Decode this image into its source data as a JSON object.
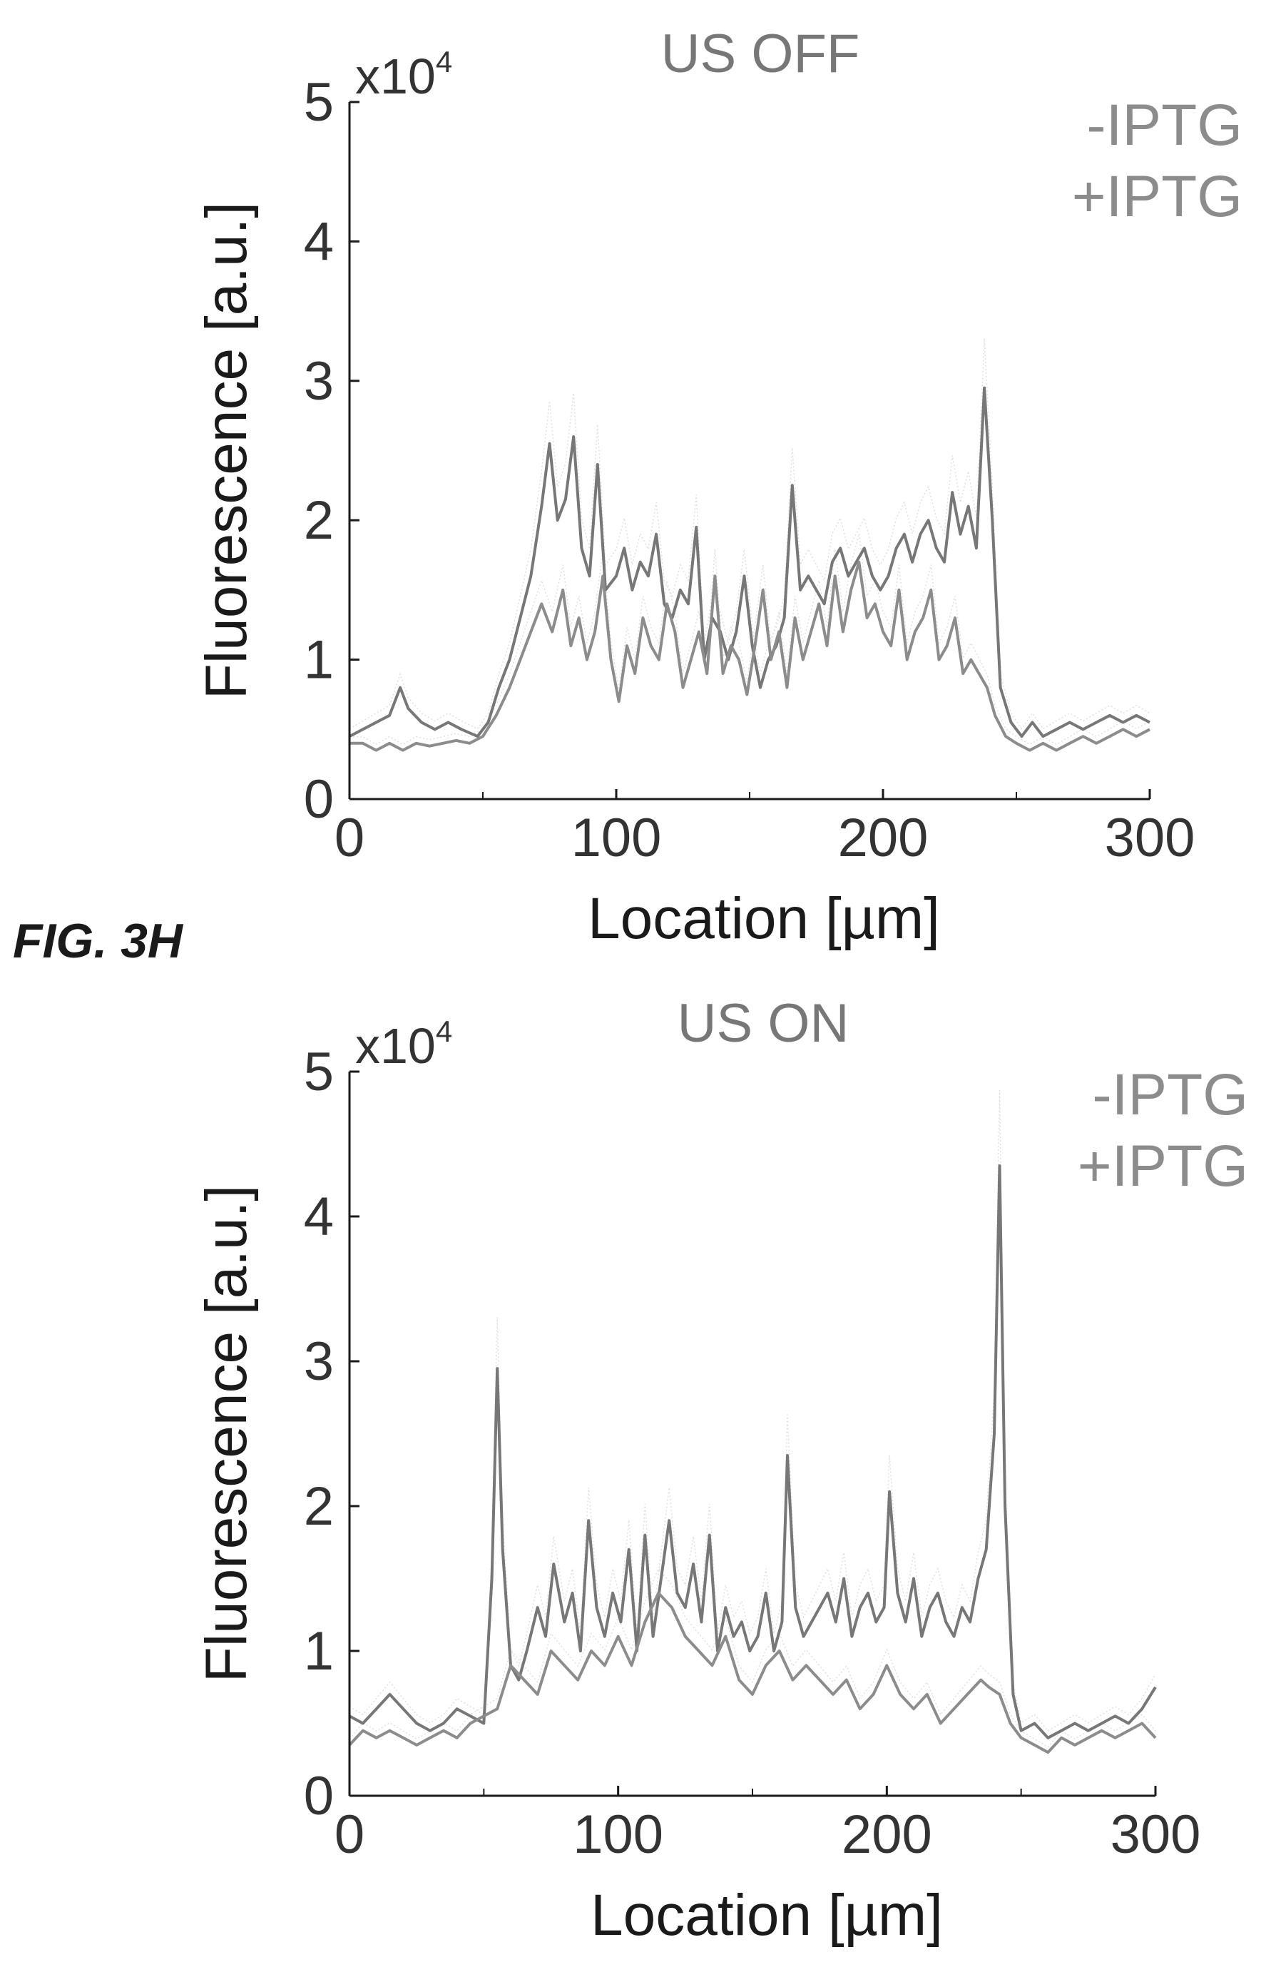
{
  "figure_label": "FIG. 3H",
  "colors": {
    "axis": "#1a1a1a",
    "tick_text": "#333333",
    "minus_iptg": "#777777",
    "plus_iptg": "#8c8c8c",
    "title": "#777777",
    "legend": "#8c8c8c",
    "band": "#c8c8c8"
  },
  "chart_data": [
    {
      "type": "line",
      "title": "US OFF",
      "xlabel": "Location [µm]",
      "ylabel": "Fluorescence [a.u.]",
      "exponent_label": "x10",
      "exponent_sup": "4",
      "xlim": [
        0,
        300
      ],
      "ylim": [
        0,
        5
      ],
      "xticks": [
        0,
        100,
        200,
        300
      ],
      "xtick_labels": [
        "0",
        "100",
        "200",
        "300"
      ],
      "yticks": [
        0,
        1,
        2,
        3,
        4,
        5
      ],
      "ytick_labels": [
        "0",
        "1",
        "2",
        "3",
        "4",
        "5"
      ],
      "grid": false,
      "legend_position": "top-right",
      "series": [
        {
          "name": "-IPTG",
          "x": [
            0,
            5,
            10,
            15,
            19,
            22,
            27,
            32,
            37,
            42,
            48,
            52,
            56,
            60,
            64,
            68,
            72,
            75,
            78,
            81,
            84,
            87,
            90,
            93,
            96,
            100,
            103,
            106,
            109,
            112,
            115,
            118,
            121,
            124,
            127,
            130,
            133,
            136,
            139,
            142,
            145,
            148,
            151,
            154,
            157,
            160,
            163,
            166,
            169,
            172,
            175,
            178,
            181,
            184,
            187,
            190,
            193,
            196,
            199,
            202,
            205,
            208,
            211,
            214,
            217,
            220,
            223,
            226,
            229,
            232,
            235,
            238,
            241,
            244,
            248,
            252,
            256,
            260,
            265,
            270,
            275,
            280,
            285,
            290,
            295,
            300
          ],
          "y": [
            0.45,
            0.5,
            0.55,
            0.6,
            0.8,
            0.65,
            0.55,
            0.5,
            0.55,
            0.5,
            0.45,
            0.55,
            0.8,
            1.0,
            1.3,
            1.6,
            2.1,
            2.55,
            2.0,
            2.15,
            2.6,
            1.8,
            1.6,
            2.4,
            1.5,
            1.6,
            1.8,
            1.5,
            1.7,
            1.6,
            1.9,
            1.4,
            1.3,
            1.5,
            1.4,
            1.95,
            1.0,
            1.3,
            1.2,
            1.0,
            1.2,
            1.6,
            1.1,
            0.8,
            1.0,
            1.1,
            1.3,
            2.25,
            1.5,
            1.6,
            1.5,
            1.4,
            1.7,
            1.8,
            1.6,
            1.7,
            1.8,
            1.6,
            1.5,
            1.6,
            1.8,
            1.9,
            1.7,
            1.9,
            2.0,
            1.8,
            1.7,
            2.2,
            1.9,
            2.1,
            1.8,
            2.95,
            2.0,
            0.8,
            0.55,
            0.45,
            0.55,
            0.45,
            0.5,
            0.55,
            0.5,
            0.55,
            0.6,
            0.55,
            0.6,
            0.55
          ]
        },
        {
          "name": "+IPTG",
          "x": [
            0,
            5,
            10,
            15,
            20,
            25,
            30,
            35,
            40,
            45,
            50,
            55,
            60,
            64,
            68,
            72,
            76,
            80,
            83,
            86,
            89,
            92,
            95,
            98,
            101,
            104,
            107,
            110,
            113,
            116,
            119,
            122,
            125,
            128,
            131,
            134,
            137,
            140,
            143,
            146,
            149,
            152,
            155,
            158,
            161,
            164,
            167,
            170,
            173,
            176,
            179,
            182,
            185,
            188,
            191,
            194,
            197,
            200,
            203,
            206,
            209,
            212,
            215,
            218,
            221,
            224,
            227,
            230,
            233,
            236,
            239,
            242,
            246,
            250,
            255,
            260,
            265,
            270,
            275,
            280,
            285,
            290,
            295,
            300
          ],
          "y": [
            0.4,
            0.4,
            0.35,
            0.4,
            0.35,
            0.4,
            0.38,
            0.4,
            0.42,
            0.4,
            0.45,
            0.6,
            0.8,
            1.0,
            1.2,
            1.4,
            1.2,
            1.5,
            1.1,
            1.3,
            1.0,
            1.2,
            1.6,
            1.0,
            0.7,
            1.1,
            0.9,
            1.3,
            1.1,
            1.0,
            1.4,
            1.2,
            0.8,
            1.0,
            1.2,
            0.9,
            1.6,
            0.9,
            1.1,
            1.0,
            0.75,
            1.1,
            1.5,
            1.0,
            1.2,
            0.8,
            1.3,
            1.0,
            1.2,
            1.4,
            1.1,
            1.6,
            1.2,
            1.5,
            1.7,
            1.3,
            1.4,
            1.2,
            1.1,
            1.5,
            1.0,
            1.2,
            1.3,
            1.5,
            1.0,
            1.1,
            1.3,
            0.9,
            1.0,
            0.9,
            0.8,
            0.6,
            0.45,
            0.4,
            0.35,
            0.4,
            0.35,
            0.4,
            0.45,
            0.4,
            0.45,
            0.5,
            0.45,
            0.5
          ]
        }
      ]
    },
    {
      "type": "line",
      "title": "US ON",
      "xlabel": "Location [µm]",
      "ylabel": "Fluorescence [a.u.]",
      "exponent_label": "x10",
      "exponent_sup": "4",
      "xlim": [
        0,
        300
      ],
      "ylim": [
        0,
        5
      ],
      "xticks": [
        0,
        100,
        200,
        300
      ],
      "xtick_labels": [
        "0",
        "100",
        "200",
        "300"
      ],
      "yticks": [
        0,
        1,
        2,
        3,
        4,
        5
      ],
      "ytick_labels": [
        "0",
        "1",
        "2",
        "3",
        "4",
        "5"
      ],
      "grid": false,
      "legend_position": "top-right",
      "series": [
        {
          "name": "-IPTG",
          "x": [
            0,
            5,
            10,
            15,
            20,
            25,
            30,
            35,
            40,
            45,
            50,
            53,
            55,
            57,
            60,
            63,
            66,
            70,
            73,
            76,
            80,
            83,
            86,
            89,
            92,
            95,
            98,
            101,
            104,
            107,
            110,
            113,
            116,
            119,
            122,
            125,
            128,
            131,
            134,
            137,
            140,
            143,
            146,
            149,
            152,
            155,
            158,
            161,
            163,
            166,
            169,
            172,
            175,
            178,
            181,
            184,
            187,
            190,
            193,
            196,
            199,
            201,
            204,
            207,
            210,
            213,
            216,
            219,
            222,
            225,
            228,
            231,
            234,
            237,
            240,
            242,
            244,
            247,
            250,
            255,
            260,
            265,
            270,
            275,
            280,
            285,
            290,
            295,
            300
          ],
          "y": [
            0.55,
            0.5,
            0.6,
            0.7,
            0.6,
            0.5,
            0.45,
            0.5,
            0.6,
            0.55,
            0.5,
            1.5,
            2.95,
            1.7,
            0.9,
            0.8,
            1.0,
            1.3,
            1.1,
            1.6,
            1.2,
            1.4,
            1.0,
            1.9,
            1.3,
            1.1,
            1.4,
            1.2,
            1.7,
            1.0,
            1.8,
            1.1,
            1.5,
            1.9,
            1.4,
            1.3,
            1.6,
            1.2,
            1.8,
            1.0,
            1.3,
            1.1,
            1.2,
            1.0,
            1.1,
            1.4,
            1.0,
            1.2,
            2.35,
            1.3,
            1.1,
            1.2,
            1.3,
            1.4,
            1.2,
            1.5,
            1.1,
            1.3,
            1.4,
            1.2,
            1.3,
            2.1,
            1.4,
            1.2,
            1.5,
            1.1,
            1.3,
            1.4,
            1.2,
            1.1,
            1.3,
            1.2,
            1.5,
            1.7,
            2.5,
            4.35,
            2.0,
            0.7,
            0.45,
            0.5,
            0.4,
            0.45,
            0.5,
            0.45,
            0.5,
            0.55,
            0.5,
            0.6,
            0.75
          ]
        },
        {
          "name": "+IPTG",
          "x": [
            0,
            5,
            10,
            15,
            20,
            25,
            30,
            35,
            40,
            45,
            50,
            55,
            60,
            65,
            70,
            75,
            80,
            85,
            90,
            95,
            100,
            105,
            110,
            115,
            120,
            125,
            130,
            135,
            140,
            145,
            150,
            155,
            160,
            165,
            170,
            175,
            180,
            185,
            190,
            195,
            200,
            205,
            210,
            215,
            220,
            225,
            230,
            235,
            238,
            242,
            246,
            250,
            255,
            260,
            265,
            270,
            275,
            280,
            285,
            290,
            295,
            300
          ],
          "y": [
            0.35,
            0.45,
            0.4,
            0.45,
            0.4,
            0.35,
            0.4,
            0.45,
            0.4,
            0.5,
            0.55,
            0.6,
            0.9,
            0.8,
            0.7,
            1.0,
            0.9,
            0.8,
            1.0,
            0.9,
            1.1,
            0.9,
            1.2,
            1.4,
            1.3,
            1.1,
            1.0,
            0.9,
            1.1,
            0.8,
            0.7,
            0.9,
            1.0,
            0.8,
            0.9,
            0.8,
            0.7,
            0.8,
            0.6,
            0.7,
            0.9,
            0.7,
            0.6,
            0.7,
            0.5,
            0.6,
            0.7,
            0.8,
            0.75,
            0.7,
            0.5,
            0.4,
            0.35,
            0.3,
            0.4,
            0.35,
            0.4,
            0.45,
            0.4,
            0.45,
            0.5,
            0.4
          ]
        }
      ]
    }
  ]
}
